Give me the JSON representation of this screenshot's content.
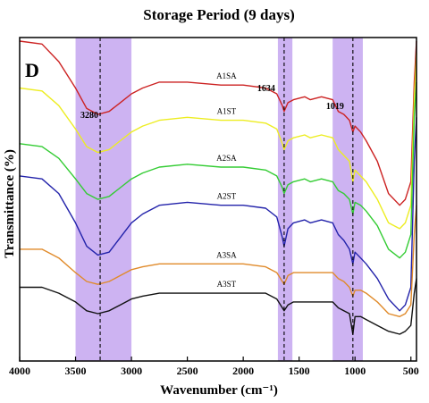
{
  "chart_data": {
    "type": "line",
    "title": "Storage Period (9 days)",
    "panel_letter": "D",
    "xlabel": "Wavenumber (cm⁻¹)",
    "ylabel": "Transmittance (%)",
    "xlim": [
      4000,
      450
    ],
    "x_reversed": true,
    "x_ticks": [
      4000,
      3500,
      3000,
      2500,
      2000,
      1500,
      1000,
      500
    ],
    "y_ticks": [],
    "highlight_bands": [
      {
        "from": 3500,
        "to": 3000,
        "color": "#c4a6f0"
      },
      {
        "from": 1690,
        "to": 1560,
        "color": "#c4a6f0"
      },
      {
        "from": 1200,
        "to": 930,
        "color": "#c4a6f0"
      }
    ],
    "reference_lines": [
      {
        "x": 3280,
        "label": "3280"
      },
      {
        "x": 1634,
        "label": "1634"
      },
      {
        "x": 1019,
        "label": "1019"
      }
    ],
    "series": [
      {
        "name": "A1SA",
        "color": "#cc2222",
        "x": [
          4000,
          3800,
          3650,
          3500,
          3400,
          3300,
          3200,
          3100,
          3000,
          2900,
          2750,
          2500,
          2200,
          2000,
          1800,
          1700,
          1650,
          1634,
          1600,
          1550,
          1450,
          1400,
          1300,
          1200,
          1150,
          1100,
          1050,
          1019,
          1000,
          950,
          900,
          800,
          700,
          600,
          550,
          500,
          470,
          450
        ],
        "y": [
          96,
          95,
          89,
          80,
          73,
          71,
          72,
          75,
          78,
          80,
          82,
          82,
          81,
          81,
          80,
          78,
          74,
          72,
          75,
          76,
          77,
          76,
          77,
          76,
          72,
          71,
          69,
          65,
          67,
          65,
          62,
          55,
          44,
          40,
          42,
          48,
          82,
          96
        ]
      },
      {
        "name": "A1ST",
        "color": "#eded22",
        "x": [
          4000,
          3800,
          3650,
          3500,
          3400,
          3300,
          3200,
          3100,
          3000,
          2900,
          2750,
          2500,
          2200,
          2000,
          1800,
          1700,
          1650,
          1634,
          1600,
          1550,
          1450,
          1400,
          1300,
          1200,
          1150,
          1100,
          1050,
          1019,
          1000,
          950,
          900,
          800,
          700,
          600,
          550,
          500,
          470,
          450
        ],
        "y": [
          80,
          79,
          74,
          66,
          60,
          58,
          59,
          62,
          65,
          67,
          69,
          70,
          69,
          69,
          68,
          66,
          61,
          59,
          62,
          63,
          64,
          63,
          64,
          63,
          59,
          57,
          55,
          48,
          52,
          50,
          48,
          42,
          34,
          32,
          34,
          40,
          76,
          92
        ]
      },
      {
        "name": "A2SA",
        "color": "#33cc33",
        "x": [
          4000,
          3800,
          3650,
          3500,
          3400,
          3300,
          3200,
          3100,
          3000,
          2900,
          2750,
          2500,
          2200,
          2000,
          1800,
          1700,
          1650,
          1634,
          1600,
          1550,
          1450,
          1400,
          1300,
          1200,
          1150,
          1100,
          1050,
          1019,
          1000,
          950,
          900,
          800,
          700,
          600,
          550,
          500,
          470,
          450
        ],
        "y": [
          61,
          60,
          56,
          49,
          44,
          42,
          43,
          46,
          49,
          51,
          53,
          54,
          53,
          53,
          52,
          50,
          46,
          44,
          47,
          48,
          49,
          48,
          49,
          48,
          45,
          44,
          42,
          37,
          41,
          40,
          38,
          33,
          25,
          22,
          24,
          30,
          70,
          82
        ]
      },
      {
        "name": "A2ST",
        "color": "#2222aa",
        "x": [
          4000,
          3800,
          3650,
          3500,
          3400,
          3300,
          3200,
          3100,
          3000,
          2900,
          2750,
          2500,
          2200,
          2000,
          1800,
          1700,
          1650,
          1634,
          1600,
          1550,
          1450,
          1400,
          1300,
          1200,
          1150,
          1100,
          1050,
          1019,
          1000,
          950,
          900,
          800,
          700,
          600,
          550,
          500,
          470,
          450
        ],
        "y": [
          50,
          49,
          44,
          34,
          26,
          23,
          24,
          29,
          34,
          37,
          40,
          41,
          40,
          40,
          39,
          36,
          29,
          26,
          32,
          34,
          35,
          34,
          35,
          34,
          30,
          28,
          25,
          20,
          24,
          22,
          20,
          15,
          8,
          4,
          6,
          12,
          55,
          70
        ]
      },
      {
        "name": "A3SA",
        "color": "#e08a2a",
        "x": [
          4000,
          3800,
          3650,
          3500,
          3400,
          3300,
          3200,
          3100,
          3000,
          2900,
          2750,
          2500,
          2200,
          2000,
          1800,
          1700,
          1650,
          1634,
          1600,
          1550,
          1450,
          1400,
          1300,
          1200,
          1150,
          1100,
          1050,
          1019,
          1000,
          950,
          900,
          800,
          700,
          600,
          550,
          500,
          470,
          450
        ],
        "y": [
          25,
          25,
          22,
          17,
          14,
          13,
          14,
          16,
          18,
          19,
          20,
          20,
          20,
          20,
          19,
          17,
          14,
          13,
          16,
          17,
          17,
          17,
          17,
          17,
          15,
          14,
          12,
          9,
          11,
          11,
          10,
          7,
          3,
          2,
          3,
          6,
          30,
          40
        ]
      },
      {
        "name": "A3ST",
        "color": "#111111",
        "x": [
          4000,
          3800,
          3650,
          3500,
          3400,
          3300,
          3200,
          3100,
          3000,
          2900,
          2750,
          2500,
          2200,
          2000,
          1800,
          1700,
          1650,
          1634,
          1600,
          1550,
          1450,
          1400,
          1300,
          1200,
          1150,
          1100,
          1050,
          1019,
          1000,
          950,
          900,
          800,
          700,
          600,
          550,
          500,
          470,
          450
        ],
        "y": [
          12,
          12,
          10,
          7,
          4,
          3,
          4,
          6,
          8,
          9,
          10,
          10,
          10,
          10,
          10,
          8,
          5,
          4,
          6,
          7,
          7,
          7,
          7,
          7,
          5,
          4,
          3,
          -4,
          2,
          2,
          1,
          -1,
          -3,
          -4,
          -3,
          -1,
          10,
          15
        ]
      }
    ]
  }
}
